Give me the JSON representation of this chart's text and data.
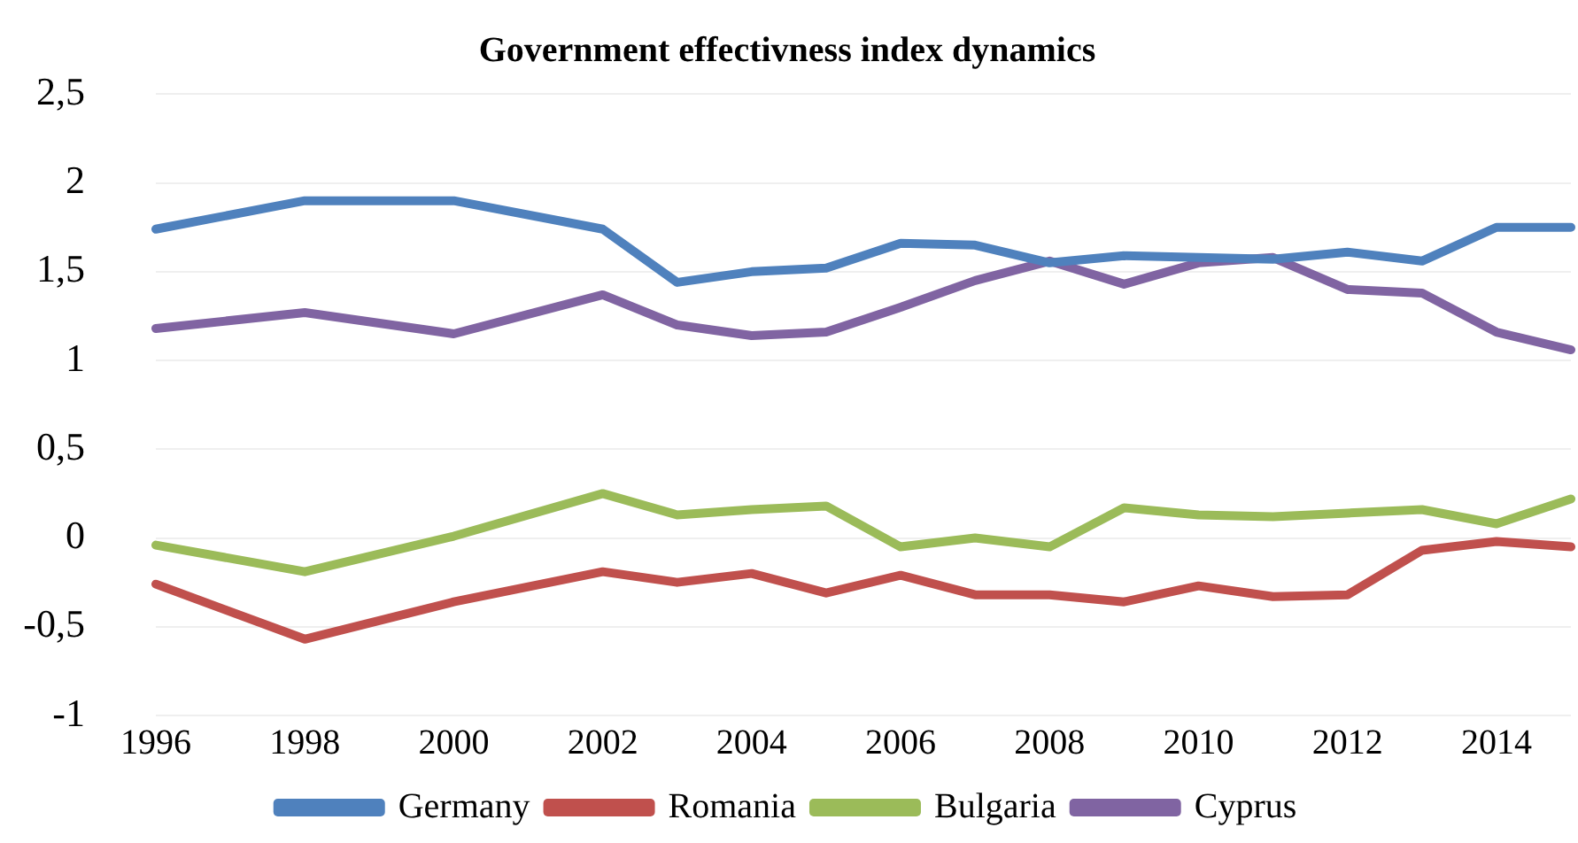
{
  "chart_data": {
    "type": "line",
    "title": "Government effectivness index dynamics",
    "categories": [
      "1996",
      null,
      "1998",
      null,
      "2000",
      null,
      "2002",
      null,
      "2004",
      null,
      "2006",
      null,
      "2008",
      null,
      "2010",
      null,
      "2012",
      null,
      "2014",
      null
    ],
    "series": [
      {
        "name": "Germany",
        "color": "#4f81bd",
        "values": [
          1.74,
          null,
          1.9,
          null,
          1.9,
          null,
          1.74,
          1.44,
          1.5,
          1.52,
          1.66,
          1.65,
          1.55,
          1.59,
          1.58,
          1.57,
          1.61,
          1.56,
          1.75,
          1.75
        ]
      },
      {
        "name": "Romania",
        "color": "#c0504d",
        "values": [
          -0.26,
          null,
          -0.57,
          null,
          -0.36,
          null,
          -0.19,
          -0.25,
          -0.2,
          -0.31,
          -0.21,
          -0.32,
          -0.32,
          -0.36,
          -0.27,
          -0.33,
          -0.32,
          -0.07,
          -0.02,
          -0.05
        ]
      },
      {
        "name": "Bulgaria",
        "color": "#9bbb59",
        "values": [
          -0.04,
          null,
          -0.19,
          null,
          0.01,
          null,
          0.25,
          0.13,
          0.16,
          0.18,
          -0.05,
          0,
          -0.05,
          0.17,
          0.13,
          0.12,
          0.14,
          0.16,
          0.08,
          0.22
        ]
      },
      {
        "name": "Cyprus",
        "color": "#8064a2",
        "values": [
          1.18,
          null,
          1.27,
          null,
          1.15,
          null,
          1.37,
          1.2,
          1.14,
          1.16,
          1.3,
          1.45,
          1.56,
          1.43,
          1.55,
          1.58,
          1.4,
          1.38,
          1.16,
          1.06
        ]
      }
    ],
    "ylim": [
      -1,
      2.5
    ],
    "yticks": [
      {
        "value": -1,
        "label": "-1"
      },
      {
        "value": -0.5,
        "label": "-0,5"
      },
      {
        "value": 0,
        "label": "0"
      },
      {
        "value": 0.5,
        "label": "0,5"
      },
      {
        "value": 1,
        "label": "1"
      },
      {
        "value": 1.5,
        "label": "1,5"
      },
      {
        "value": 2,
        "label": "2"
      },
      {
        "value": 2.5,
        "label": "2,5"
      }
    ],
    "grid": "y",
    "legend": "bottom",
    "marker": "none",
    "line_style": "solid"
  }
}
